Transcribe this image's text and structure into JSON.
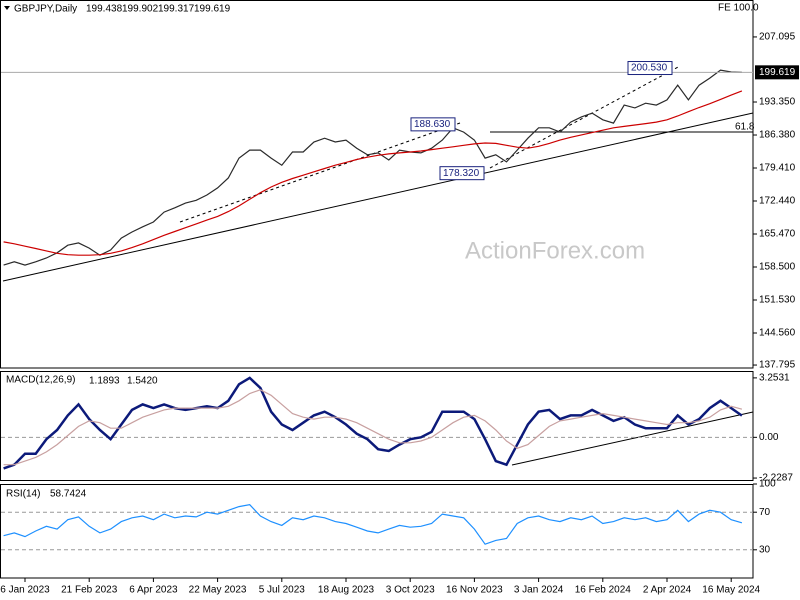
{
  "chart_data": [
    {
      "type": "line",
      "title": "GBPJPY,Daily",
      "ohlc": [
        199.438,
        199.902,
        199.317,
        199.619
      ],
      "last": 199.619,
      "study": "FE 100.0",
      "fib_level": 61.8,
      "watermark": "ActionForex.com",
      "categories": [
        null,
        null,
        "6 Jan 2023",
        null,
        null,
        null,
        null,
        null,
        "21 Feb 2023",
        null,
        null,
        null,
        null,
        null,
        "6 Apr 2023",
        null,
        null,
        null,
        null,
        null,
        "22 May 2023",
        null,
        null,
        null,
        null,
        null,
        "5 Jul 2023",
        null,
        null,
        null,
        null,
        null,
        "18 Aug 2023",
        null,
        null,
        null,
        null,
        null,
        "3 Oct 2023",
        null,
        null,
        null,
        null,
        null,
        "16 Nov 2023",
        null,
        null,
        null,
        null,
        null,
        "3 Jan 2024",
        null,
        null,
        null,
        null,
        null,
        "16 Feb 2024",
        null,
        null,
        null,
        null,
        null,
        "2 Apr 2024",
        null,
        null,
        null,
        null,
        null,
        "16 May 2024",
        null
      ],
      "series": [
        {
          "color": "#2a2a2a",
          "values": [
            158.9,
            159.6,
            158.9,
            159.6,
            160.4,
            161.5,
            163.1,
            163.6,
            162.5,
            161.0,
            162.1,
            164.6,
            165.9,
            167.0,
            168.0,
            170.1,
            171.0,
            172.0,
            172.6,
            173.7,
            175.2,
            177.3,
            181.5,
            183.2,
            183.2,
            181.5,
            180.0,
            182.8,
            182.8,
            184.9,
            185.7,
            184.9,
            185.3,
            183.6,
            182.2,
            182.6,
            181.1,
            183.2,
            182.8,
            182.6,
            183.6,
            185.3,
            187.9,
            187.0,
            185.3,
            181.5,
            182.2,
            180.7,
            183.2,
            185.7,
            187.9,
            187.9,
            187.0,
            189.1,
            190.2,
            191.0,
            189.6,
            188.9,
            192.7,
            192.1,
            193.1,
            192.7,
            193.8,
            196.9,
            193.8,
            196.9,
            198.4,
            200.1,
            199.7,
            199.619
          ]
        },
        {
          "color": "#cc0000",
          "values": [
            163.8,
            163.4,
            162.9,
            162.4,
            161.9,
            161.4,
            161.1,
            161.0,
            161.0,
            161.1,
            161.4,
            161.9,
            162.6,
            163.4,
            164.3,
            165.2,
            166.0,
            166.8,
            167.6,
            168.4,
            169.2,
            170.2,
            171.4,
            172.8,
            174.2,
            175.4,
            176.4,
            177.2,
            177.9,
            178.6,
            179.3,
            180.0,
            180.6,
            181.2,
            181.7,
            182.1,
            182.4,
            182.6,
            182.8,
            183.0,
            183.3,
            183.6,
            183.9,
            184.2,
            184.5,
            184.7,
            184.6,
            184.2,
            183.8,
            183.6,
            184.0,
            184.6,
            185.3,
            185.9,
            186.4,
            186.9,
            187.4,
            187.9,
            188.2,
            188.5,
            188.8,
            189.1,
            189.6,
            190.4,
            191.3,
            192.2,
            193.0,
            193.9,
            194.8,
            195.7
          ]
        }
      ],
      "annotations": [
        {
          "value": 200.53,
          "label": "200.530"
        },
        {
          "value": 188.63,
          "label": "188.630"
        },
        {
          "value": 178.32,
          "label": "178.320"
        }
      ],
      "ylim": [
        137.17,
        211.94
      ],
      "yticks": [
        207.095,
        {
          "value": 193.35,
          "label": "193.350"
        },
        {
          "value": 186.38,
          "label": "186.380"
        },
        {
          "value": 179.41,
          "label": "179.410"
        },
        {
          "value": 172.44,
          "label": "172.440"
        },
        {
          "value": 165.47,
          "label": "165.470"
        },
        {
          "value": 158.5,
          "label": "158.500"
        },
        {
          "value": 151.53,
          "label": "151.530"
        },
        {
          "value": 144.56,
          "label": "144.560"
        },
        137.795
      ]
    },
    {
      "type": "line",
      "title": "MACD(12,26,9)",
      "readout": [
        1.1893,
        {
          "value": 1.542,
          "label": "1.5420"
        }
      ],
      "zero_line": true,
      "series": [
        {
          "color": "#0c1a7a",
          "values": [
            -1.7,
            -1.5,
            -0.9,
            -0.9,
            -0.1,
            0.4,
            1.2,
            1.8,
            1.0,
            0.4,
            -0.1,
            0.7,
            1.5,
            1.8,
            1.6,
            1.8,
            1.6,
            1.5,
            1.6,
            1.7,
            1.6,
            2.0,
            2.9,
            3.25,
            2.7,
            1.4,
            0.7,
            0.4,
            0.8,
            1.2,
            1.4,
            1.1,
            0.7,
            0.2,
            -0.1,
            -0.65,
            -0.75,
            -0.4,
            -0.1,
            0.0,
            0.3,
            1.4,
            1.4,
            1.4,
            1.0,
            -0.1,
            -1.3,
            -1.5,
            -0.4,
            0.7,
            1.4,
            1.5,
            1.0,
            1.2,
            1.2,
            1.5,
            1.2,
            0.9,
            1.1,
            0.7,
            0.5,
            0.5,
            0.5,
            1.2,
            0.7,
            1.0,
            1.6,
            2.0,
            1.6,
            1.1893
          ]
        },
        {
          "color": "#c8a0a0",
          "values": [
            -1.5,
            -1.5,
            -1.3,
            -1.1,
            -0.8,
            -0.4,
            0.1,
            0.6,
            0.9,
            0.8,
            0.5,
            0.5,
            0.8,
            1.1,
            1.3,
            1.5,
            1.6,
            1.6,
            1.6,
            1.6,
            1.6,
            1.7,
            2.0,
            2.4,
            2.6,
            2.3,
            1.8,
            1.3,
            1.1,
            1.0,
            1.1,
            1.1,
            1.0,
            0.8,
            0.5,
            0.2,
            -0.1,
            -0.3,
            -0.3,
            -0.2,
            0.0,
            0.4,
            0.8,
            1.1,
            1.2,
            0.9,
            0.4,
            -0.2,
            -0.6,
            -0.4,
            0.1,
            0.6,
            0.9,
            1.0,
            1.1,
            1.2,
            1.3,
            1.2,
            1.1,
            1.0,
            0.9,
            0.8,
            0.7,
            0.8,
            0.8,
            0.9,
            1.1,
            1.5,
            1.7,
            1.542
          ]
        }
      ],
      "ylim": [
        -2.39,
        3.63
      ],
      "yticks": [
        3.2531,
        {
          "value": 0,
          "label": "0.00"
        },
        -2.2287
      ]
    },
    {
      "type": "line",
      "title": "RSI(14)",
      "readout": [
        58.7424
      ],
      "grid": true,
      "series": [
        {
          "color": "#1e90ff",
          "values": [
            45,
            48,
            44,
            50,
            55,
            52,
            62,
            65,
            55,
            48,
            52,
            60,
            64,
            66,
            62,
            68,
            64,
            66,
            65,
            70,
            68,
            72,
            76,
            78,
            66,
            60,
            56,
            64,
            62,
            66,
            64,
            60,
            58,
            54,
            50,
            48,
            52,
            56,
            54,
            55,
            58,
            68,
            66,
            64,
            52,
            36,
            40,
            42,
            58,
            64,
            66,
            62,
            60,
            64,
            62,
            66,
            58,
            60,
            64,
            62,
            64,
            60,
            62,
            72,
            60,
            68,
            72,
            70,
            62,
            58.7424
          ]
        }
      ],
      "ylim": [
        0,
        100
      ],
      "yticks": [
        100,
        70,
        30
      ]
    }
  ]
}
